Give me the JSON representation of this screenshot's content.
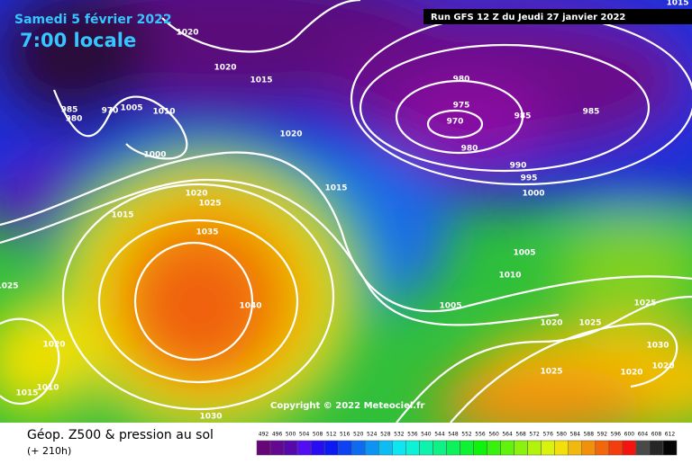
{
  "header": {
    "date": "Samedi 5 février 2022",
    "time": "7:00 locale",
    "run": "Run GFS 12 Z du Jeudi 27 janvier 2022"
  },
  "isobar_labels": [
    "1020",
    "1020",
    "1015",
    "985",
    "980",
    "970",
    "1005",
    "1010",
    "1000",
    "1020",
    "1015",
    "1020",
    "1025",
    "1015",
    "1035",
    "1040",
    "1025",
    "1020",
    "1015",
    "1010",
    "1030",
    "980",
    "975",
    "970",
    "980",
    "985",
    "985",
    "990",
    "995",
    "1000",
    "1005",
    "1010",
    "1005",
    "1020",
    "1025",
    "1025",
    "1030",
    "1020",
    "1020",
    "1025",
    "1015"
  ],
  "copyright": "Copyright © 2022 Meteociel.fr",
  "legend": {
    "title": "Géop. Z500 & pression au sol",
    "lead": "(+ 210h)",
    "ticks": [
      492,
      496,
      500,
      504,
      508,
      512,
      516,
      520,
      524,
      528,
      532,
      536,
      540,
      544,
      548,
      552,
      556,
      560,
      564,
      568,
      572,
      576,
      580,
      584,
      588,
      592,
      596,
      600,
      604,
      608,
      612
    ]
  }
}
